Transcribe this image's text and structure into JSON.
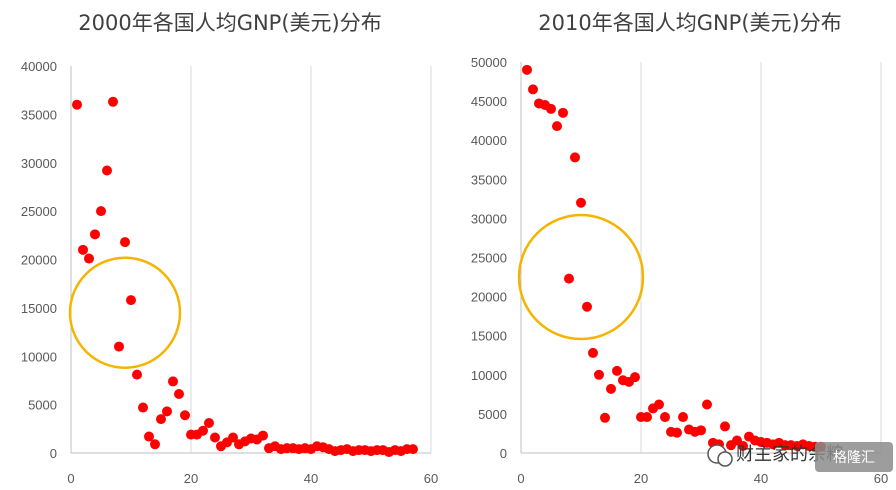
{
  "chart_data": [
    {
      "type": "scatter",
      "title": "2000年各国人均GNP(美元)分布",
      "xlim": [
        0,
        60
      ],
      "ylim": [
        0,
        40000
      ],
      "x_ticks": [
        0,
        20,
        40,
        60
      ],
      "y_ticks": [
        0,
        5000,
        10000,
        15000,
        20000,
        25000,
        30000,
        35000,
        40000
      ],
      "grid": "vertical",
      "marker_color": "#ff0000",
      "highlight": {
        "shape": "circle",
        "color": "#f5b400",
        "center": [
          9,
          14500
        ]
      },
      "series": [
        {
          "x": [
            1,
            2,
            3,
            4,
            5,
            6,
            7,
            8,
            9,
            10,
            11,
            12,
            13,
            14,
            15,
            16,
            17,
            18,
            19,
            20,
            21,
            22,
            23,
            24,
            25,
            26,
            27,
            28,
            29,
            30,
            31,
            32,
            33,
            34,
            35,
            36,
            37,
            38,
            39,
            40,
            41,
            42,
            43,
            44,
            45,
            46,
            47,
            48,
            49,
            50,
            51,
            52,
            53,
            54,
            55,
            56,
            57
          ],
          "y": [
            36000,
            21000,
            20100,
            22600,
            25000,
            29200,
            36300,
            11000,
            21800,
            15800,
            8100,
            4700,
            1700,
            900,
            3500,
            4300,
            7400,
            6100,
            3900,
            1900,
            1900,
            2300,
            3100,
            1600,
            700,
            1100,
            1600,
            900,
            1200,
            1500,
            1400,
            1800,
            500,
            700,
            400,
            500,
            500,
            400,
            500,
            400,
            700,
            600,
            400,
            200,
            300,
            400,
            200,
            300,
            300,
            200,
            300,
            300,
            100,
            300,
            200,
            400,
            400
          ]
        }
      ]
    },
    {
      "type": "scatter",
      "title": "2010年各国人均GNP(美元)分布",
      "xlim": [
        0,
        60
      ],
      "ylim": [
        0,
        50000
      ],
      "x_ticks": [
        0,
        20,
        40,
        60
      ],
      "y_ticks": [
        0,
        5000,
        10000,
        15000,
        20000,
        25000,
        30000,
        35000,
        40000,
        45000,
        50000
      ],
      "grid": "vertical",
      "marker_color": "#ff0000",
      "highlight": {
        "shape": "circle",
        "color": "#f5b400",
        "center": [
          10,
          22500
        ]
      },
      "series": [
        {
          "x": [
            1,
            2,
            3,
            4,
            5,
            6,
            7,
            8,
            9,
            10,
            11,
            12,
            13,
            14,
            15,
            16,
            17,
            18,
            19,
            20,
            21,
            22,
            23,
            24,
            25,
            26,
            27,
            28,
            29,
            30,
            31,
            32,
            33,
            34,
            35,
            36,
            37,
            38,
            39,
            40,
            41,
            42,
            43,
            44,
            45,
            46,
            47,
            48,
            49,
            50
          ],
          "y": [
            49000,
            46500,
            44700,
            44500,
            44000,
            41800,
            43500,
            22300,
            37800,
            32000,
            18700,
            12800,
            10000,
            4500,
            8200,
            10500,
            9300,
            9100,
            9700,
            4600,
            4600,
            5700,
            6200,
            4600,
            2700,
            2600,
            4600,
            3000,
            2700,
            2900,
            6200,
            1300,
            1100,
            3400,
            1000,
            1600,
            900,
            2100,
            1600,
            1400,
            1300,
            1100,
            1300,
            1000,
            1000,
            900,
            1100,
            900,
            800,
            800
          ]
        }
      ]
    }
  ],
  "watermark": {
    "text": "财主家的余粮",
    "badge_text": "格隆汇",
    "icon": "wechat-icon"
  }
}
